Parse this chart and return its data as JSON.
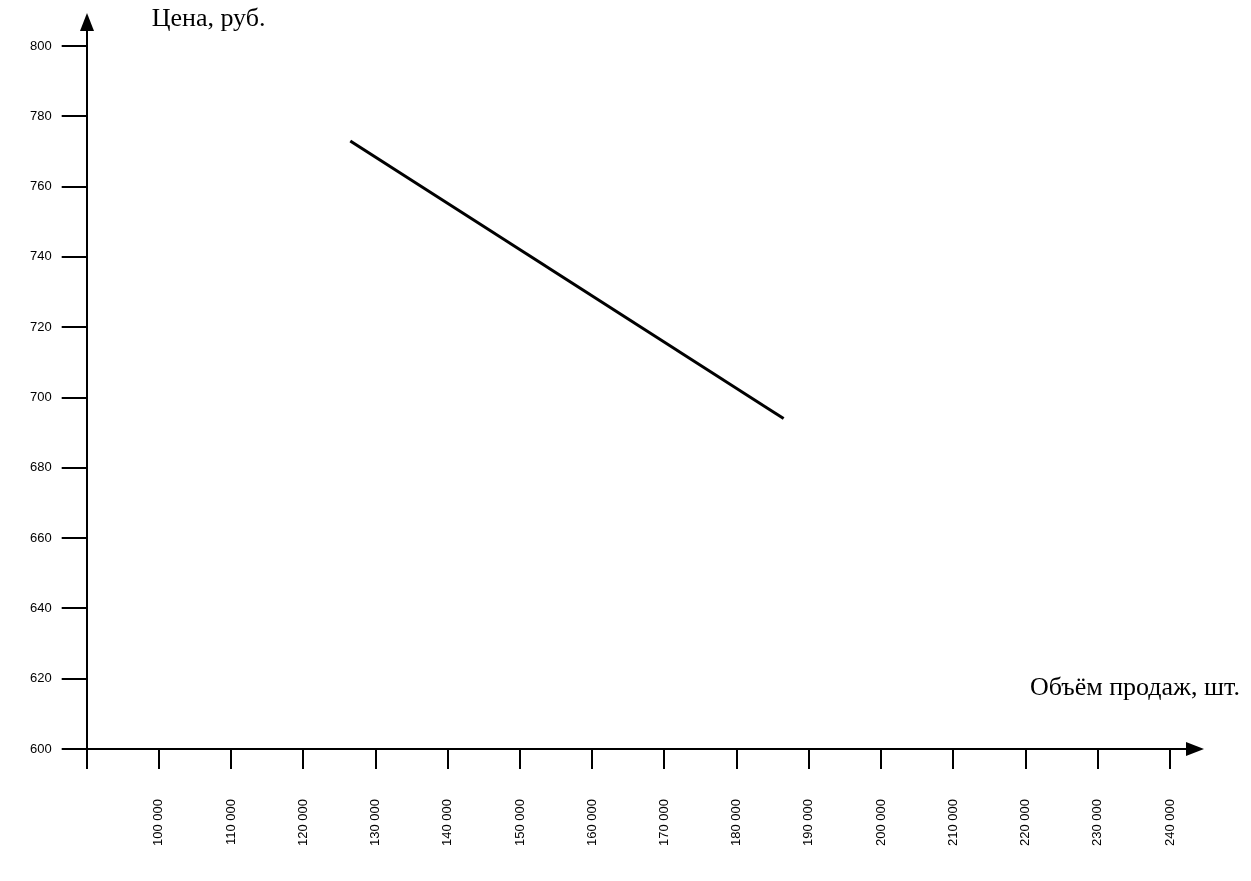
{
  "chart_data": {
    "type": "line",
    "xlabel": "Объём продаж, шт.",
    "ylabel": "Цена, руб.",
    "x": [
      126500,
      186500
    ],
    "series": [
      {
        "color": "#000000",
        "values": [
          773,
          694
        ]
      }
    ],
    "xlim": [
      90000,
      240000
    ],
    "xticks": [
      {
        "value": 90000,
        "label": null
      },
      {
        "value": 100000,
        "label": "100 000"
      },
      {
        "value": 110000,
        "label": "110 000"
      },
      {
        "value": 120000,
        "label": "120 000"
      },
      {
        "value": 130000,
        "label": "130 000"
      },
      {
        "value": 140000,
        "label": "140 000"
      },
      {
        "value": 150000,
        "label": "150 000"
      },
      {
        "value": 160000,
        "label": "160 000"
      },
      {
        "value": 170000,
        "label": "170 000"
      },
      {
        "value": 180000,
        "label": "180 000"
      },
      {
        "value": 190000,
        "label": "190 000"
      },
      {
        "value": 200000,
        "label": "200 000"
      },
      {
        "value": 210000,
        "label": "210 000"
      },
      {
        "value": 220000,
        "label": "220 000"
      },
      {
        "value": 230000,
        "label": "230 000"
      },
      {
        "value": 240000,
        "label": "240 000"
      }
    ],
    "ylim": [
      600,
      800
    ],
    "yticks": [
      600,
      620,
      640,
      660,
      680,
      700,
      720,
      740,
      760,
      780,
      800
    ],
    "grid": false,
    "legend": false,
    "marker": "none",
    "line_style": "solid"
  }
}
